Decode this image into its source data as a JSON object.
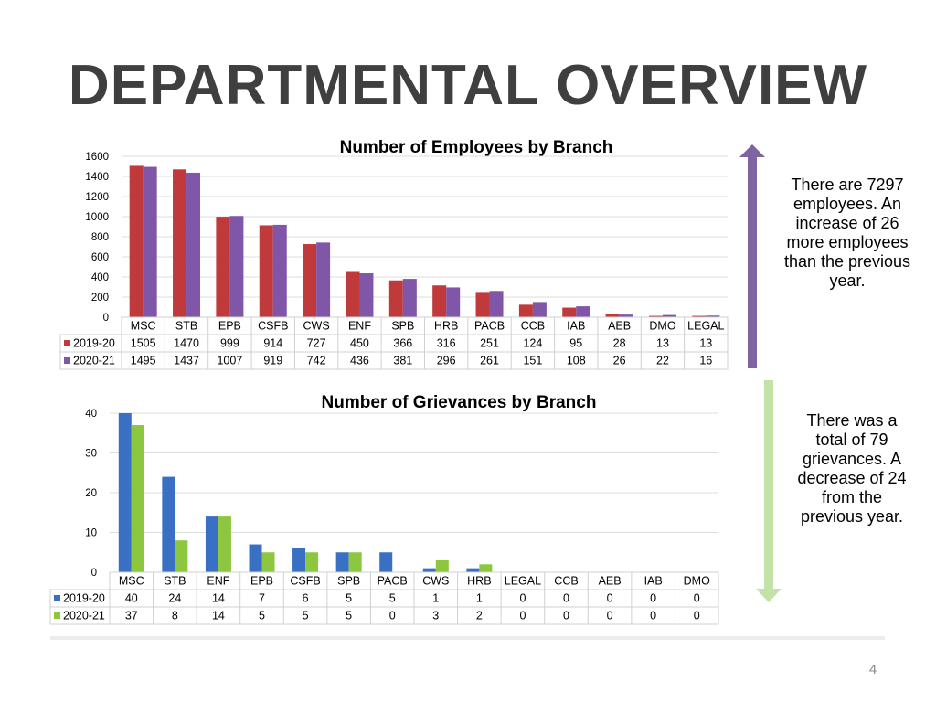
{
  "slide": {
    "title": "DEPARTMENTAL OVERVIEW",
    "page_number": "4"
  },
  "notes": {
    "employees": "There are 7297 employees. An increase of 26 more employees than the previous year.",
    "grievances": "There was a total of 79 grievances. A decrease of 24 from the previous year."
  },
  "arrows": {
    "employees": {
      "direction": "up",
      "color": "#8064a2"
    },
    "grievances": {
      "direction": "down",
      "color": "#c3e3a6"
    }
  },
  "chart_data": [
    {
      "type": "bar",
      "title": "Number of Employees by Branch",
      "categories": [
        "MSC",
        "STB",
        "EPB",
        "CSFB",
        "CWS",
        "ENF",
        "SPB",
        "HRB",
        "PACB",
        "CCB",
        "IAB",
        "AEB",
        "DMO",
        "LEGAL"
      ],
      "series": [
        {
          "name": "2019-20",
          "color": "#c0393b",
          "values": [
            1505,
            1470,
            999,
            914,
            727,
            450,
            366,
            316,
            251,
            124,
            95,
            28,
            13,
            13
          ]
        },
        {
          "name": "2020-21",
          "color": "#7f56a8",
          "values": [
            1495,
            1437,
            1007,
            919,
            742,
            436,
            381,
            296,
            261,
            151,
            108,
            26,
            22,
            16
          ]
        }
      ],
      "ylim": [
        0,
        1600
      ],
      "yticks": [
        0,
        200,
        400,
        600,
        800,
        1000,
        1200,
        1400,
        1600
      ],
      "grid": true,
      "legend": "data-table"
    },
    {
      "type": "bar",
      "title": "Number of Grievances by Branch",
      "categories": [
        "MSC",
        "STB",
        "ENF",
        "EPB",
        "CSFB",
        "SPB",
        "PACB",
        "CWS",
        "HRB",
        "LEGAL",
        "CCB",
        "AEB",
        "IAB",
        "DMO"
      ],
      "series": [
        {
          "name": "2019-20",
          "color": "#3a70c4",
          "values": [
            40,
            24,
            14,
            7,
            6,
            5,
            5,
            1,
            1,
            0,
            0,
            0,
            0,
            0
          ]
        },
        {
          "name": "2020-21",
          "color": "#8dc63f",
          "values": [
            37,
            8,
            14,
            5,
            5,
            5,
            0,
            3,
            2,
            0,
            0,
            0,
            0,
            0
          ]
        }
      ],
      "ylim": [
        0,
        40
      ],
      "yticks": [
        0,
        10,
        20,
        30,
        40
      ],
      "grid": true,
      "legend": "data-table"
    }
  ]
}
